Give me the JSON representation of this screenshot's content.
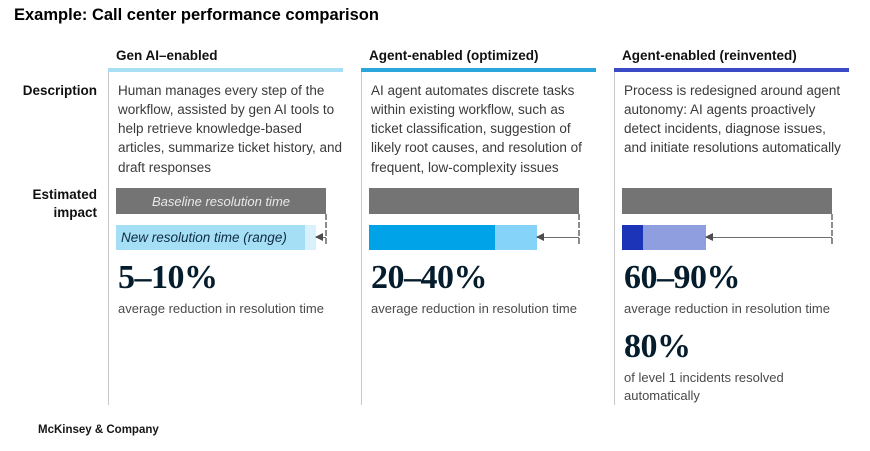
{
  "title": "Example: Call center performance comparison",
  "footer": "McKinsey & Company",
  "row_labels": {
    "description": "Description",
    "estimated_impact": "Estimated\nimpact"
  },
  "bar_styles": {
    "baseline_color": "#747474",
    "dash_color": "#8C8C8C",
    "arrow_color": "#5A5A5A"
  },
  "columns": [
    {
      "header": "Gen AI–enabled",
      "accent_color": "#A9DFF5",
      "description": "Human manages every step of the workflow, assisted by gen AI tools to help retrieve knowledge-based articles, summarize ticket history, and draft responses",
      "baseline_label": "Baseline resolution time",
      "new_label": "New resolution time (range)",
      "bar": {
        "new_time_min_pct": 90,
        "new_time_max_pct": 95,
        "solid_color": "#A5DFF6",
        "range_color": "#D9F1FC"
      },
      "reduction": "5–10%",
      "reduction_caption": "average reduction in resolution time"
    },
    {
      "header": "Agent-enabled (optimized)",
      "accent_color": "#2AA6DC",
      "description": "AI agent automates discrete tasks within existing workflow, such as ticket classification, suggestion of likely root causes, and resolution of frequent, low-complexity issues",
      "bar": {
        "new_time_min_pct": 60,
        "new_time_max_pct": 80,
        "solid_color": "#00A3E8",
        "range_color": "#85D3F8"
      },
      "reduction": "20–40%",
      "reduction_caption": "average reduction in resolution time"
    },
    {
      "header": "Agent-enabled (reinvented)",
      "accent_color": "#3B4AC5",
      "description": "Process is redesigned around agent autonomy: AI agents proactively detect incidents, diagnose issues, and initiate resolutions automatically",
      "bar": {
        "new_time_min_pct": 10,
        "new_time_max_pct": 40,
        "solid_color": "#1C34B8",
        "range_color": "#8F9EDE"
      },
      "reduction": "60–90%",
      "reduction_caption": "average reduction in resolution time",
      "extra_stat": {
        "value": "80%",
        "caption": "of level 1 incidents resolved automatically"
      }
    }
  ],
  "chart_data": {
    "type": "bar",
    "orientation": "horizontal",
    "title": "Example: Call center performance comparison",
    "categories": [
      "Gen AI–enabled",
      "Agent-enabled (optimized)",
      "Agent-enabled (reinvented)"
    ],
    "series": [
      {
        "name": "Baseline resolution time",
        "values": [
          100,
          100,
          100
        ]
      },
      {
        "name": "New resolution time range (low)",
        "values": [
          90,
          60,
          10
        ]
      },
      {
        "name": "New resolution time range (high)",
        "values": [
          95,
          80,
          40
        ]
      }
    ],
    "unit": "% of baseline resolution time",
    "xlim": [
      0,
      100
    ],
    "legend_position": "labels inside first column bars",
    "annotations": [
      {
        "category": "Gen AI–enabled",
        "value": "5–10%",
        "label": "average reduction in resolution time"
      },
      {
        "category": "Agent-enabled (optimized)",
        "value": "20–40%",
        "label": "average reduction in resolution time"
      },
      {
        "category": "Agent-enabled (reinvented)",
        "value": "60–90%",
        "label": "average reduction in resolution time"
      },
      {
        "category": "Agent-enabled (reinvented)",
        "value": "80%",
        "label": "of level 1 incidents resolved automatically"
      }
    ]
  }
}
